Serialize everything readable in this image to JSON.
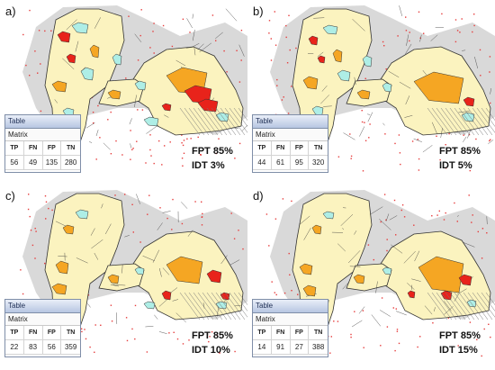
{
  "colors": {
    "background_region": "#d9d9d9",
    "base_polygon": "#fbf3bf",
    "true_positive": "#e8231b",
    "false_negative": "#f5a623",
    "false_positive": "#aeeee6",
    "point_scatter": "#e63c3c",
    "outline": "#333333"
  },
  "panels": [
    {
      "label": "a)",
      "table": {
        "title": "Table",
        "subtitle": "Matrix",
        "headers": [
          "TP",
          "FN",
          "FP",
          "TN"
        ],
        "values": [
          "56",
          "49",
          "135",
          "280"
        ]
      },
      "fpt": "FPT 85%",
      "idt": "IDT 3%"
    },
    {
      "label": "b)",
      "table": {
        "title": "Table",
        "subtitle": "Matrix",
        "headers": [
          "TP",
          "FN",
          "FP",
          "TN"
        ],
        "values": [
          "44",
          "61",
          "95",
          "320"
        ]
      },
      "fpt": "FPT 85%",
      "idt": "IDT 5%"
    },
    {
      "label": "c)",
      "table": {
        "title": "Table",
        "subtitle": "Matrix",
        "headers": [
          "TP",
          "FN",
          "FP",
          "TN"
        ],
        "values": [
          "22",
          "83",
          "56",
          "359"
        ]
      },
      "fpt": "FPT 85%",
      "idt": "IDT 10%"
    },
    {
      "label": "d)",
      "table": {
        "title": "Table",
        "subtitle": "Matrix",
        "headers": [
          "TP",
          "FN",
          "FP",
          "TN"
        ],
        "values": [
          "14",
          "91",
          "27",
          "388"
        ]
      },
      "fpt": "FPT 85%",
      "idt": "IDT 15%"
    }
  ]
}
